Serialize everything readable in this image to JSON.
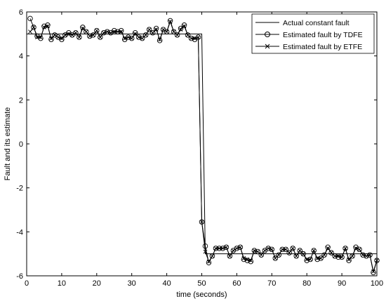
{
  "chart_data": {
    "type": "line",
    "xlabel": "time (seconds)",
    "ylabel": "Fault and its estimate",
    "xlim": [
      0,
      100
    ],
    "ylim": [
      -6,
      6
    ],
    "xticks": [
      0,
      10,
      20,
      30,
      40,
      50,
      60,
      70,
      80,
      90,
      100
    ],
    "yticks": [
      -6,
      -4,
      -2,
      0,
      2,
      4,
      6
    ],
    "grid": false,
    "legend_position": "top-right",
    "series": [
      {
        "name": "Actual constant fault",
        "marker": "none",
        "x": [
          0,
          50,
          51,
          100
        ],
        "y": [
          5,
          5,
          -5,
          -5
        ]
      },
      {
        "name": "Estimated fault by TDFE",
        "marker": "circle",
        "x": [
          1,
          2,
          3,
          4,
          5,
          6,
          7,
          8,
          9,
          10,
          11,
          12,
          13,
          14,
          15,
          16,
          17,
          18,
          19,
          20,
          21,
          22,
          23,
          24,
          25,
          26,
          27,
          28,
          29,
          30,
          31,
          32,
          33,
          34,
          35,
          36,
          37,
          38,
          39,
          40,
          41,
          42,
          43,
          44,
          45,
          46,
          47,
          48,
          49,
          50,
          51,
          52,
          53,
          54,
          55,
          56,
          57,
          58,
          59,
          60,
          61,
          62,
          63,
          64,
          65,
          66,
          67,
          68,
          69,
          70,
          71,
          72,
          73,
          74,
          75,
          76,
          77,
          78,
          79,
          80,
          81,
          82,
          83,
          84,
          85,
          86,
          87,
          88,
          89,
          90,
          91,
          92,
          93,
          94,
          95,
          96,
          97,
          98,
          99,
          100
        ],
        "y": [
          5.7,
          5.3,
          4.9,
          4.8,
          5.35,
          5.4,
          4.75,
          4.95,
          4.85,
          4.75,
          4.95,
          5.05,
          4.95,
          5.05,
          4.85,
          5.3,
          5.1,
          4.9,
          4.95,
          5.15,
          4.85,
          5.05,
          5.1,
          5.05,
          5.15,
          5.1,
          5.15,
          4.75,
          4.85,
          4.8,
          5.05,
          4.85,
          4.8,
          4.95,
          5.2,
          5.05,
          5.25,
          4.7,
          5.2,
          5.1,
          5.6,
          5.1,
          4.95,
          5.25,
          5.4,
          4.95,
          4.8,
          4.75,
          4.85,
          -3.55,
          -4.65,
          -5.4,
          -5.1,
          -4.75,
          -4.75,
          -4.75,
          -4.7,
          -5.1,
          -4.85,
          -4.75,
          -4.7,
          -5.25,
          -5.3,
          -5.35,
          -4.85,
          -4.9,
          -5.05,
          -4.85,
          -4.75,
          -4.8,
          -5.2,
          -5.05,
          -4.8,
          -4.8,
          -4.95,
          -4.75,
          -5.1,
          -4.85,
          -5.0,
          -5.3,
          -5.25,
          -4.85,
          -5.25,
          -5.2,
          -5.05,
          -4.7,
          -4.95,
          -5.1,
          -5.15,
          -5.15,
          -4.75,
          -5.3,
          -5.1,
          -4.7,
          -4.8,
          -5.05,
          -5.1,
          -5.05,
          -5.85,
          -5.3
        ]
      },
      {
        "name": "Estimated fault by ETFE",
        "marker": "x",
        "x": [
          1,
          2,
          3,
          4,
          5,
          6,
          7,
          8,
          9,
          10,
          11,
          12,
          13,
          14,
          15,
          16,
          17,
          18,
          19,
          20,
          21,
          22,
          23,
          24,
          25,
          26,
          27,
          28,
          29,
          30,
          31,
          32,
          33,
          34,
          35,
          36,
          37,
          38,
          39,
          40,
          41,
          42,
          43,
          44,
          45,
          46,
          47,
          48,
          49,
          50,
          51,
          52,
          53,
          54,
          55,
          56,
          57,
          58,
          59,
          60,
          61,
          62,
          63,
          64,
          65,
          66,
          67,
          68,
          69,
          70,
          71,
          72,
          73,
          74,
          75,
          76,
          77,
          78,
          79,
          80,
          81,
          82,
          83,
          84,
          85,
          86,
          87,
          88,
          89,
          90,
          91,
          92,
          93,
          94,
          95,
          96,
          97,
          98,
          99,
          100
        ],
        "y": [
          5.1,
          5.3,
          4.85,
          4.85,
          5.3,
          5.35,
          4.8,
          4.95,
          4.85,
          4.8,
          4.95,
          5.0,
          4.95,
          5.05,
          4.85,
          5.25,
          5.1,
          4.9,
          4.95,
          5.15,
          4.85,
          5.05,
          5.1,
          5.05,
          5.1,
          5.1,
          5.1,
          4.8,
          4.85,
          4.8,
          5.0,
          4.85,
          4.8,
          4.95,
          5.2,
          5.05,
          5.2,
          4.75,
          5.2,
          5.1,
          5.55,
          5.1,
          4.95,
          5.2,
          5.35,
          4.95,
          4.8,
          4.8,
          4.85,
          -3.55,
          -4.9,
          -5.35,
          -5.1,
          -4.75,
          -4.75,
          -4.75,
          -4.7,
          -5.1,
          -4.85,
          -4.75,
          -4.7,
          -5.2,
          -5.25,
          -5.3,
          -4.85,
          -4.9,
          -5.05,
          -4.85,
          -4.75,
          -4.8,
          -5.2,
          -5.05,
          -4.8,
          -4.8,
          -4.95,
          -4.75,
          -5.1,
          -4.85,
          -5.0,
          -5.25,
          -5.25,
          -4.85,
          -5.2,
          -5.2,
          -5.05,
          -4.75,
          -4.95,
          -5.1,
          -5.1,
          -5.15,
          -4.75,
          -5.25,
          -5.1,
          -4.75,
          -4.8,
          -5.05,
          -5.1,
          -5.05,
          -5.8,
          -5.3
        ]
      }
    ]
  }
}
